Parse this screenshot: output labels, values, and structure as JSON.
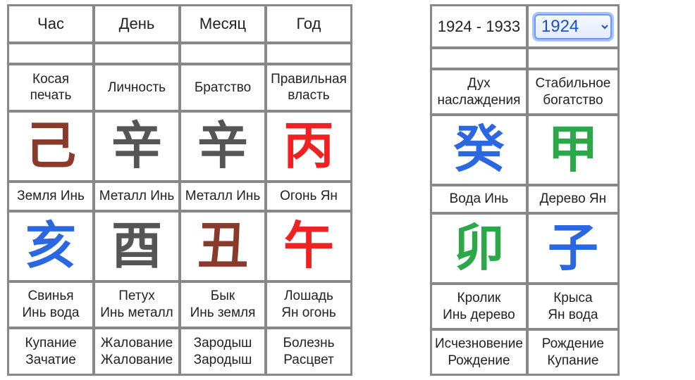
{
  "main_table": {
    "headers": [
      "Час",
      "День",
      "Месяц",
      "Год"
    ],
    "deity": [
      "Косая печать",
      "Личность",
      "Братство",
      "Правильная власть"
    ],
    "stem_glyph": [
      "己",
      "辛",
      "辛",
      "丙"
    ],
    "stem_color": [
      "c-brown",
      "c-gray",
      "c-gray",
      "c-red"
    ],
    "stem_element": [
      "Земля Инь",
      "Металл Инь",
      "Металл Инь",
      "Огонь Ян"
    ],
    "branch_glyph": [
      "亥",
      "酉",
      "丑",
      "午"
    ],
    "branch_color": [
      "c-blue",
      "c-gray",
      "c-brown",
      "c-red"
    ],
    "animal": [
      "Свинья",
      "Петух",
      "Бык",
      "Лошадь"
    ],
    "branch_element": [
      "Инь вода",
      "Инь металл",
      "Инь земля",
      "Ян огонь"
    ],
    "phase1": [
      "Купание",
      "Жалование",
      "Зародыш",
      "Болезнь"
    ],
    "phase2": [
      "Зачатие",
      "Жалование",
      "Зародыш",
      "Расцвет"
    ]
  },
  "side_table": {
    "year_range": "1924 - 1933",
    "year_selected": "1924",
    "deity": [
      "Дух наслаждения",
      "Стабильное богатство"
    ],
    "stem_glyph": [
      "癸",
      "甲"
    ],
    "stem_color": [
      "c-blue",
      "c-green"
    ],
    "stem_element": [
      "Вода Инь",
      "Дерево Ян"
    ],
    "branch_glyph": [
      "卯",
      "子"
    ],
    "branch_color": [
      "c-green",
      "c-blue"
    ],
    "animal": [
      "Кролик",
      "Крыса"
    ],
    "branch_element": [
      "Инь дерево",
      "Ян вода"
    ],
    "phase1": [
      "Исчезновение",
      "Рождение"
    ],
    "phase2": [
      "Рождение",
      "Купание"
    ]
  }
}
